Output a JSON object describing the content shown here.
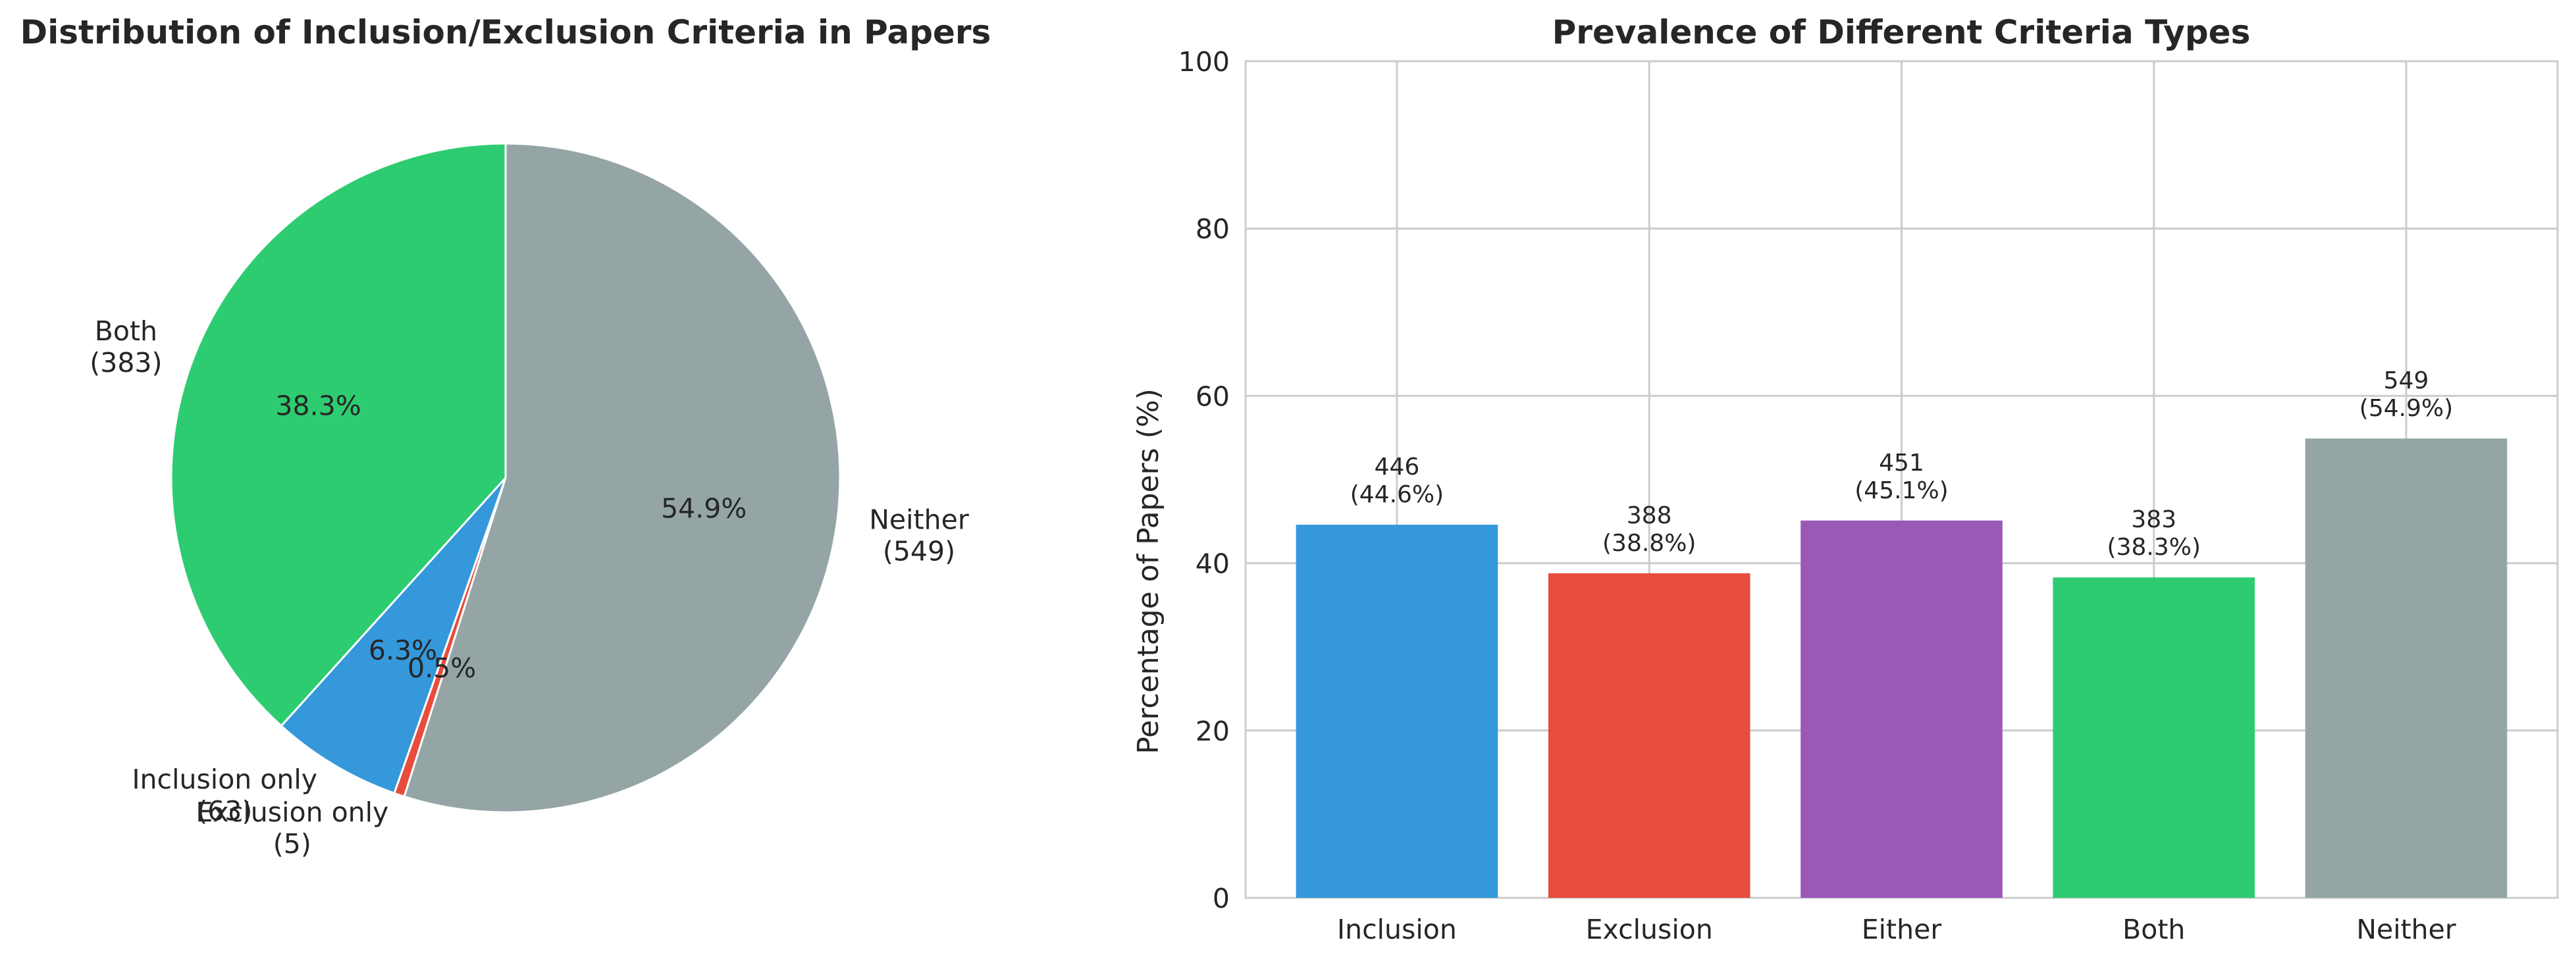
{
  "chart_data": [
    {
      "type": "pie",
      "title": "Distribution of Inclusion/Exclusion Criteria in Papers",
      "slices": [
        {
          "label": "Both",
          "count_label": "(383)",
          "value": 383,
          "pct_label": "38.3%",
          "color": "#2ecc71"
        },
        {
          "label": "Inclusion only",
          "count_label": "(63)",
          "value": 63,
          "pct_label": "6.3%",
          "color": "#3498db"
        },
        {
          "label": "Exclusion only",
          "count_label": "(5)",
          "value": 5,
          "pct_label": "0.5%",
          "color": "#e74c3c"
        },
        {
          "label": "Neither",
          "count_label": "(549)",
          "value": 549,
          "pct_label": "54.9%",
          "color": "#95a5a6"
        }
      ],
      "start_angle_deg": 90,
      "direction": "counterclockwise"
    },
    {
      "type": "bar",
      "title": "Prevalence of Different Criteria Types",
      "xlabel": "",
      "ylabel": "Percentage of Papers (%)",
      "ylim": [
        0,
        100
      ],
      "yticks": [
        0,
        20,
        40,
        60,
        80,
        100
      ],
      "grid": true,
      "categories": [
        "Inclusion",
        "Exclusion",
        "Either",
        "Both",
        "Neither"
      ],
      "values": [
        44.6,
        38.8,
        45.1,
        38.3,
        54.9
      ],
      "colors": [
        "#3498db",
        "#e74c3c",
        "#9b59b6",
        "#2ecc71",
        "#95a5a6"
      ],
      "data_labels": [
        [
          "446",
          "(44.6%)"
        ],
        [
          "388",
          "(38.8%)"
        ],
        [
          "451",
          "(45.1%)"
        ],
        [
          "383",
          "(38.3%)"
        ],
        [
          "549",
          "(54.9%)"
        ]
      ]
    }
  ]
}
